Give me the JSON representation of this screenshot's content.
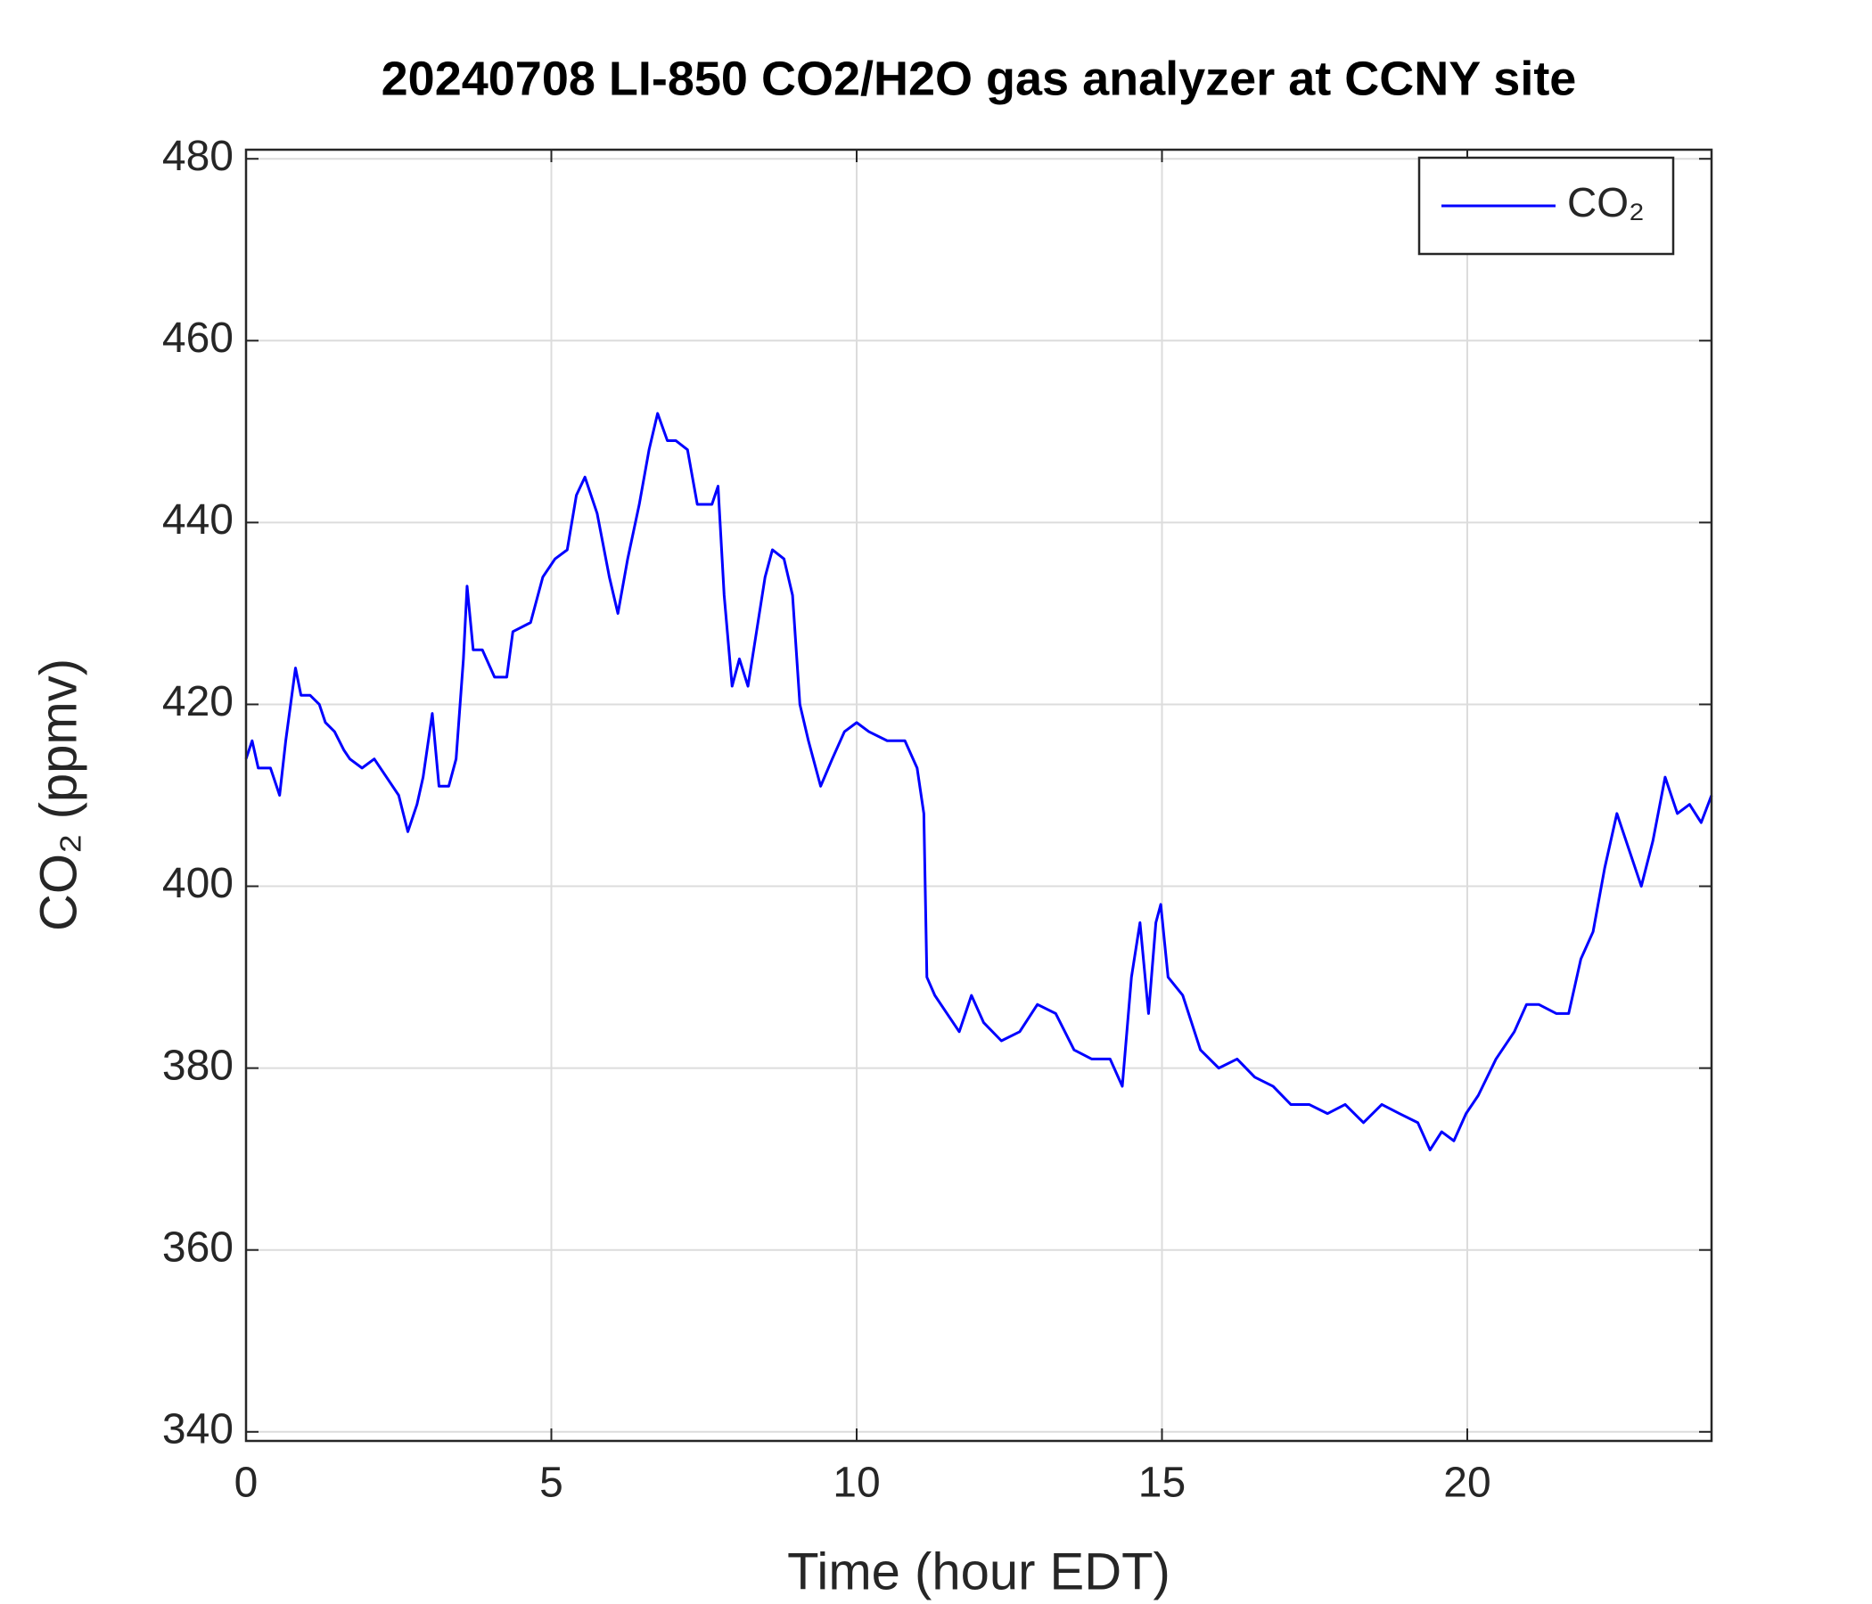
{
  "chart_data": {
    "type": "line",
    "title": "20240708 LI-850 CO2/H2O gas analyzer at CCNY site",
    "xlabel": "Time (hour EDT)",
    "ylabel": "CO₂ (ppmv)",
    "xlim": [
      0,
      24
    ],
    "ylim": [
      339,
      481
    ],
    "xticks": [
      0,
      5,
      10,
      15,
      20
    ],
    "yticks": [
      340,
      360,
      380,
      400,
      420,
      440,
      460,
      480
    ],
    "grid": true,
    "legend": "upper right",
    "series": [
      {
        "name": "CO₂",
        "color": "#0000ff",
        "x": [
          0,
          0.1,
          0.2,
          0.4,
          0.55,
          0.65,
          0.81,
          0.9,
          1.05,
          1.2,
          1.3,
          1.45,
          1.6,
          1.7,
          1.9,
          2.1,
          2.3,
          2.5,
          2.65,
          2.8,
          2.9,
          3.05,
          3.16,
          3.32,
          3.44,
          3.56,
          3.62,
          3.72,
          3.87,
          4.07,
          4.27,
          4.37,
          4.66,
          4.86,
          5.06,
          5.26,
          5.41,
          5.55,
          5.75,
          5.95,
          6.09,
          6.25,
          6.44,
          6.6,
          6.74,
          6.9,
          7.04,
          7.23,
          7.39,
          7.63,
          7.73,
          7.83,
          7.96,
          8.08,
          8.22,
          8.36,
          8.5,
          8.62,
          8.81,
          8.95,
          9.07,
          9.21,
          9.41,
          9.6,
          9.8,
          10.0,
          10.2,
          10.5,
          10.79,
          10.99,
          11.1,
          11.15,
          11.28,
          11.48,
          11.68,
          11.88,
          12.08,
          12.37,
          12.67,
          12.96,
          13.26,
          13.56,
          13.85,
          14.15,
          14.35,
          14.5,
          14.64,
          14.78,
          14.9,
          14.98,
          15.1,
          15.34,
          15.63,
          15.93,
          16.23,
          16.52,
          16.82,
          17.11,
          17.41,
          17.71,
          18.0,
          18.3,
          18.6,
          18.89,
          19.19,
          19.39,
          19.58,
          19.78,
          19.98,
          20.18,
          20.47,
          20.77,
          20.97,
          21.17,
          21.46,
          21.66,
          21.86,
          22.06,
          22.25,
          22.45,
          22.65,
          22.85,
          23.04,
          23.24,
          23.44,
          23.64,
          23.83,
          24.0
        ],
        "values": [
          414,
          416,
          413,
          413,
          410,
          416,
          424,
          421,
          421,
          420,
          418,
          417,
          415,
          414,
          413,
          414,
          412,
          410,
          406,
          409,
          412,
          419,
          411,
          411,
          414,
          425,
          433,
          426,
          426,
          423,
          423,
          428,
          429,
          434,
          436,
          437,
          443,
          445,
          441,
          434,
          430,
          436,
          442,
          448,
          452,
          449,
          449,
          448,
          442,
          442,
          444,
          432,
          422,
          425,
          422,
          428,
          434,
          437,
          436,
          432,
          420,
          416,
          411,
          414,
          417,
          418,
          417,
          416,
          416,
          413,
          408,
          390,
          388,
          386,
          384,
          388,
          385,
          383,
          384,
          387,
          386,
          382,
          381,
          381,
          378,
          390,
          396,
          386,
          396,
          398,
          390,
          388,
          382,
          380,
          381,
          379,
          378,
          376,
          376,
          375,
          376,
          374,
          376,
          375,
          374,
          371,
          373,
          372,
          375,
          377,
          381,
          384,
          387,
          387,
          386,
          386,
          392,
          395,
          402,
          408,
          404,
          400,
          405,
          412,
          408,
          409,
          407,
          410
        ]
      }
    ]
  }
}
